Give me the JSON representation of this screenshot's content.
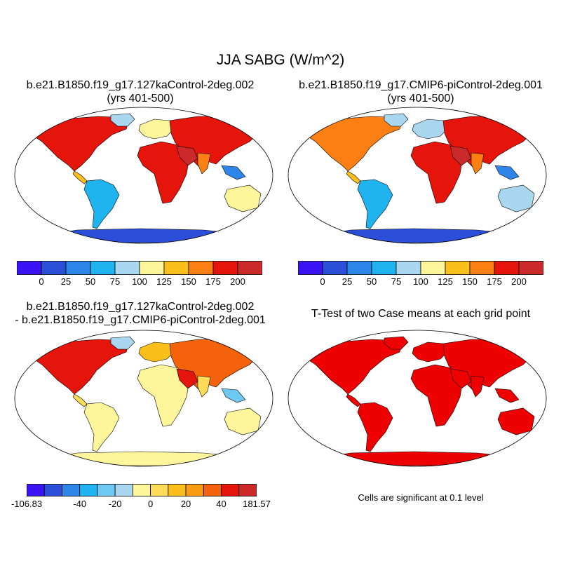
{
  "main_title": "JJA SABG (W/m^2)",
  "panels": [
    {
      "title_line1": "b.e21.B1850.f19_g17.127kaControl-2deg.002",
      "title_line2": "(yrs 401-500)"
    },
    {
      "title_line1": "b.e21.B1850.f19_g17.CMIP6-piControl-2deg.001",
      "title_line2": "(yrs 401-500)"
    },
    {
      "title_line1": "b.e21.B1850.f19_g17.127kaControl-2deg.002",
      "title_line2": "- b.e21.B1850.f19_g17.CMIP6-piControl-2deg.001"
    },
    {
      "title_line1": "T-Test of two Case means at each grid point",
      "title_line2": ""
    }
  ],
  "colorbar_absolute": {
    "colors": [
      "#3a14f5",
      "#2b4fd9",
      "#2f86ea",
      "#1fb3f0",
      "#a9d7f0",
      "#fff59a",
      "#fbbf1b",
      "#fb7f12",
      "#e5150c",
      "#cc2a2a"
    ],
    "ticks": [
      "0",
      "25",
      "50",
      "75",
      "100",
      "125",
      "150",
      "175",
      "200"
    ]
  },
  "colorbar_difference": {
    "colors": [
      "#3a14f5",
      "#2b4fd9",
      "#2f86ea",
      "#1fb3f0",
      "#6fc8f2",
      "#a9d7f0",
      "#fff59a",
      "#fedc58",
      "#fbbf1b",
      "#fb9c12",
      "#f5620c",
      "#e5150c",
      "#cc2a2a"
    ],
    "ticks": [
      "-106.83",
      "-40",
      "-20",
      "0",
      "20",
      "40",
      "181.57"
    ]
  },
  "significance_note": "Cells are significant at 0.1 level",
  "map_colors": {
    "ocean": "#ffffff",
    "antarctica_abs": "#2b4fd9",
    "antarctica_diff": "#fff59a",
    "ttest_fill": "#ee0000"
  }
}
